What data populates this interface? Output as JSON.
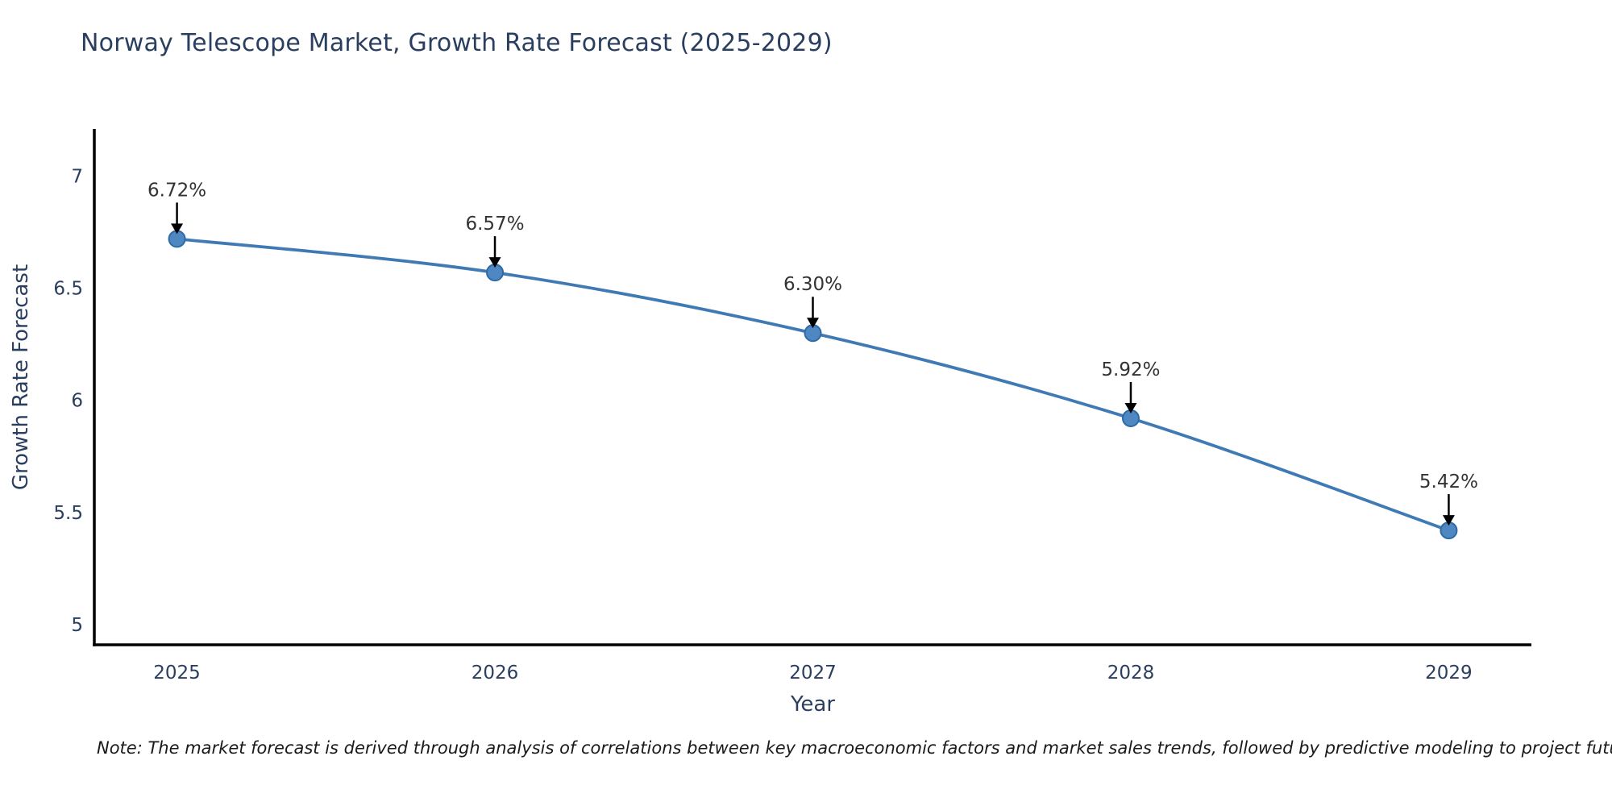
{
  "note": "Note: The market forecast is derived through analysis of correlations between key macroeconomic factors and market sales trends, followed by predictive modeling to project future sales",
  "chart_data": {
    "type": "line",
    "title": "Norway Telescope Market, Growth Rate Forecast (2025-2029)",
    "xlabel": "Year",
    "ylabel": "Growth Rate Forecast",
    "x": [
      2025,
      2026,
      2027,
      2028,
      2029
    ],
    "categories": [
      "2025",
      "2026",
      "2027",
      "2028",
      "2029"
    ],
    "series": [
      {
        "name": "Growth Rate Forecast",
        "values": [
          6.72,
          6.57,
          6.3,
          5.92,
          5.42
        ]
      }
    ],
    "data_labels": [
      "6.72%",
      "6.57%",
      "6.30%",
      "5.92%",
      "5.42%"
    ],
    "yticks": [
      5,
      5.5,
      6,
      6.5,
      7
    ],
    "ytick_labels": [
      "5",
      "5.5",
      "6",
      "6.5",
      "7"
    ],
    "xlim": [
      2024.74,
      2029.26
    ],
    "ylim": [
      4.91,
      7.21
    ],
    "grid": false,
    "legend": false,
    "smooth": true,
    "line_color": "#3f7ab5",
    "marker_color": "#4e87c1",
    "marker_edge_color": "#2f6aa5",
    "axis_color": "#000000",
    "text_color": "#2a3f5f",
    "annotation_text_color": "#333333",
    "annotation_arrow_color": "#000000"
  }
}
